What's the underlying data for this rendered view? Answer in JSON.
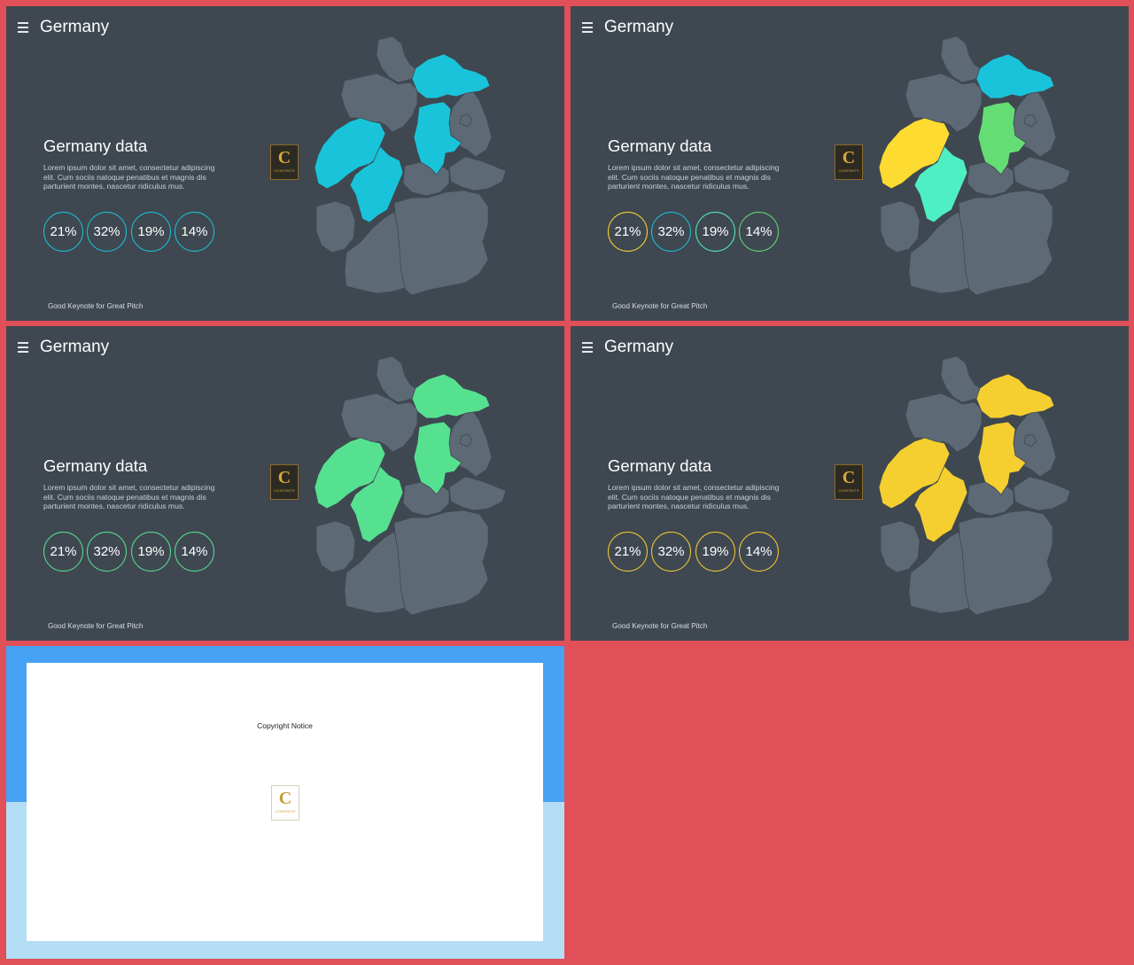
{
  "colors": {
    "background": "#e14f59",
    "slide_bg": "#3f4851",
    "map_base": "#5d6a76",
    "cyan": "#19c4da",
    "yellow": "#fedb30",
    "green": "#65dd75",
    "mint": "#4ef0c3",
    "soft_green": "#56e191",
    "gold": "#f5cf30"
  },
  "slides": [
    {
      "title": "Germany",
      "heading": "Germany data",
      "description": "Lorem ipsum dolor sit amet, consectetur adipiscing elit. Cum sociis natoque penatibus et magnis dis parturient montes, nascetur ridiculus mus.",
      "stats": [
        "21%",
        "32%",
        "19%",
        "14%"
      ],
      "stat_colors": [
        "#19c4da",
        "#19c4da",
        "#19c4da",
        "#19c4da"
      ],
      "region_colors": {
        "mv": "#19c4da",
        "st": "#19c4da",
        "nrw": "#19c4da",
        "he": "#19c4da"
      },
      "footer": "Good Keynote for Great Pitch"
    },
    {
      "title": "Germany",
      "heading": "Germany data",
      "description": "Lorem ipsum dolor sit amet, consectetur adipiscing elit. Cum sociis natoque penatibus et magnis dis parturient montes, nascetur ridiculus mus.",
      "stats": [
        "21%",
        "32%",
        "19%",
        "14%"
      ],
      "stat_colors": [
        "#fedb30",
        "#19c4da",
        "#4ef0c3",
        "#65dd75"
      ],
      "region_colors": {
        "mv": "#19c4da",
        "st": "#65dd75",
        "nrw": "#fedb30",
        "he": "#4ef0c3"
      },
      "footer": "Good Keynote for Great Pitch"
    },
    {
      "title": "Germany",
      "heading": "Germany data",
      "description": "Lorem ipsum dolor sit amet, consectetur adipiscing elit. Cum sociis natoque penatibus et magnis dis parturient montes, nascetur ridiculus mus.",
      "stats": [
        "21%",
        "32%",
        "19%",
        "14%"
      ],
      "stat_colors": [
        "#56e191",
        "#56e191",
        "#56e191",
        "#56e191"
      ],
      "region_colors": {
        "mv": "#56e191",
        "st": "#56e191",
        "nrw": "#56e191",
        "he": "#56e191"
      },
      "footer": "Good Keynote for Great Pitch"
    },
    {
      "title": "Germany",
      "heading": "Germany data",
      "description": "Lorem ipsum dolor sit amet, consectetur adipiscing elit. Cum sociis natoque penatibus et magnis dis parturient montes, nascetur ridiculus mus.",
      "stats": [
        "21%",
        "32%",
        "19%",
        "14%"
      ],
      "stat_colors": [
        "#f5cf30",
        "#f5cf30",
        "#f5cf30",
        "#f5cf30"
      ],
      "region_colors": {
        "mv": "#f5cf30",
        "st": "#f5cf30",
        "nrw": "#f5cf30",
        "he": "#f5cf30"
      },
      "footer": "Good Keynote for Great Pitch"
    }
  ],
  "copyright": {
    "notice": "Copyright Notice",
    "logo_letter": "C",
    "logo_text": "CONTENTS"
  }
}
